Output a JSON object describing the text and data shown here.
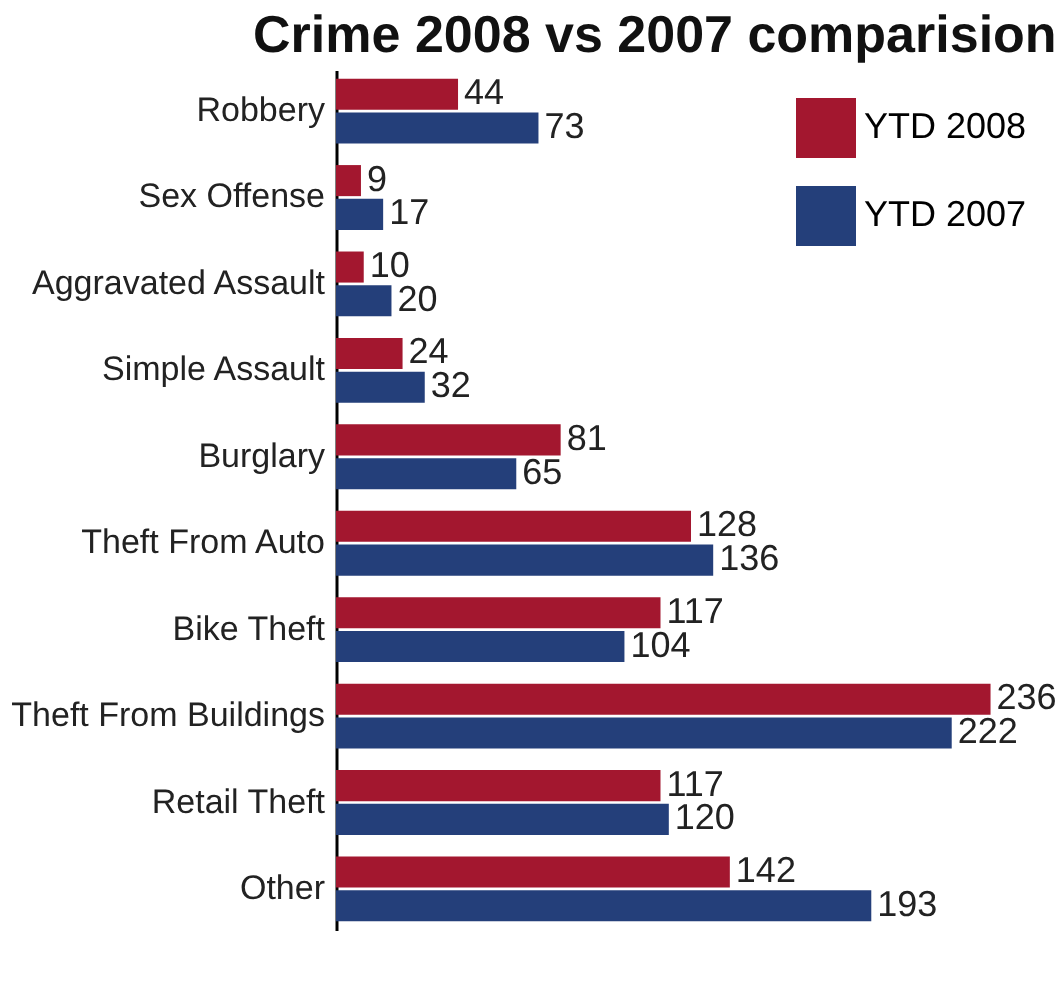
{
  "chart_data": {
    "type": "bar",
    "orientation": "horizontal",
    "title": "Crime 2008 vs 2007 comparision",
    "categories": [
      "Robbery",
      "Sex Offense",
      "Aggravated Assault",
      "Simple Assault",
      "Burglary",
      "Theft From Auto",
      "Bike Theft",
      "Theft From Buildings",
      "Retail Theft",
      "Other"
    ],
    "series": [
      {
        "name": "YTD 2008",
        "color": "#a3172f",
        "values": [
          44,
          9,
          10,
          24,
          81,
          128,
          117,
          236,
          117,
          142
        ]
      },
      {
        "name": "YTD 2007",
        "color": "#243f7a",
        "values": [
          73,
          17,
          20,
          32,
          65,
          136,
          104,
          222,
          120,
          193
        ]
      }
    ],
    "data_labels": true,
    "legend": "top right"
  }
}
